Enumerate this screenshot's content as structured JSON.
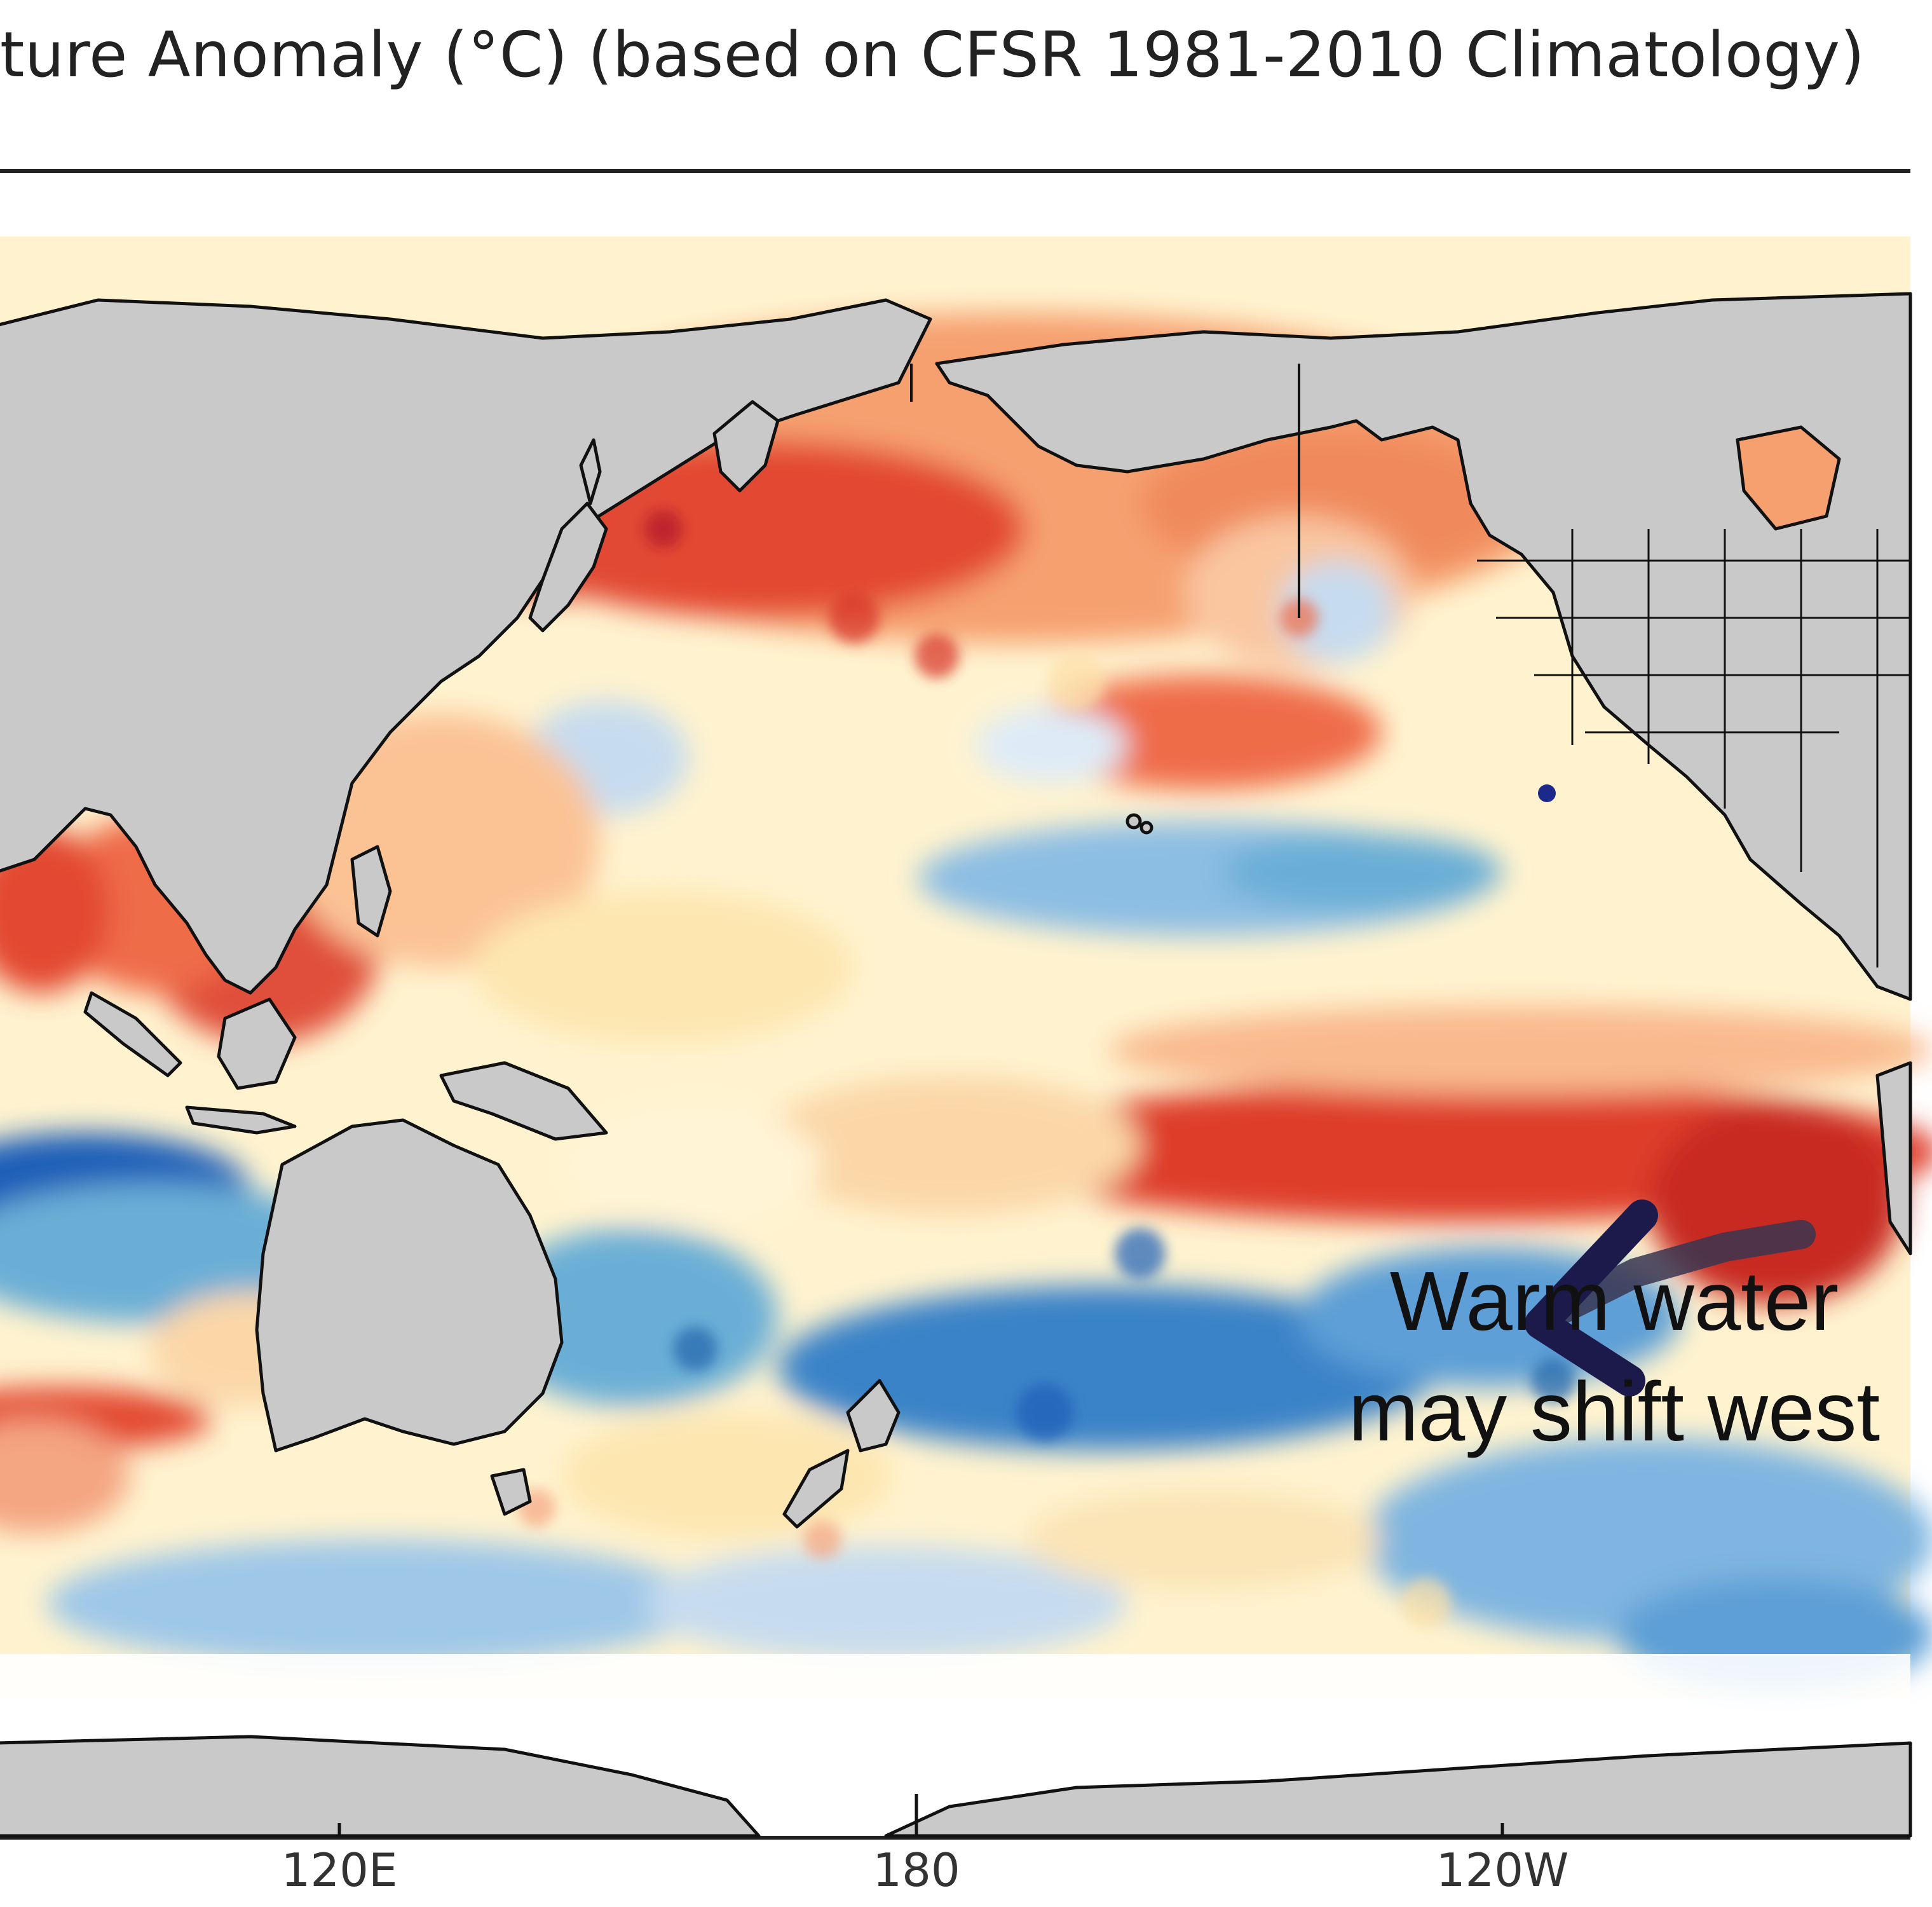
{
  "map": {
    "title": "ture Anomaly (°C) (based on CFSR 1981-2010 Climatology)",
    "x_ticks": [
      "120E",
      "180",
      "120W"
    ],
    "annotation": {
      "line1": "Warm water",
      "line2": "may shift west"
    },
    "colors": {
      "land": "#c9c9c9",
      "coastline": "#111111",
      "warm_strong": "#d73027",
      "warm": "#f4a582",
      "warm_light": "#fde0a8",
      "neutral": "#fffbe6",
      "cool_light": "#c6dbef",
      "cool": "#6baed6",
      "cool_strong": "#1c5fb8",
      "arrow": "#1b1a4a"
    }
  }
}
